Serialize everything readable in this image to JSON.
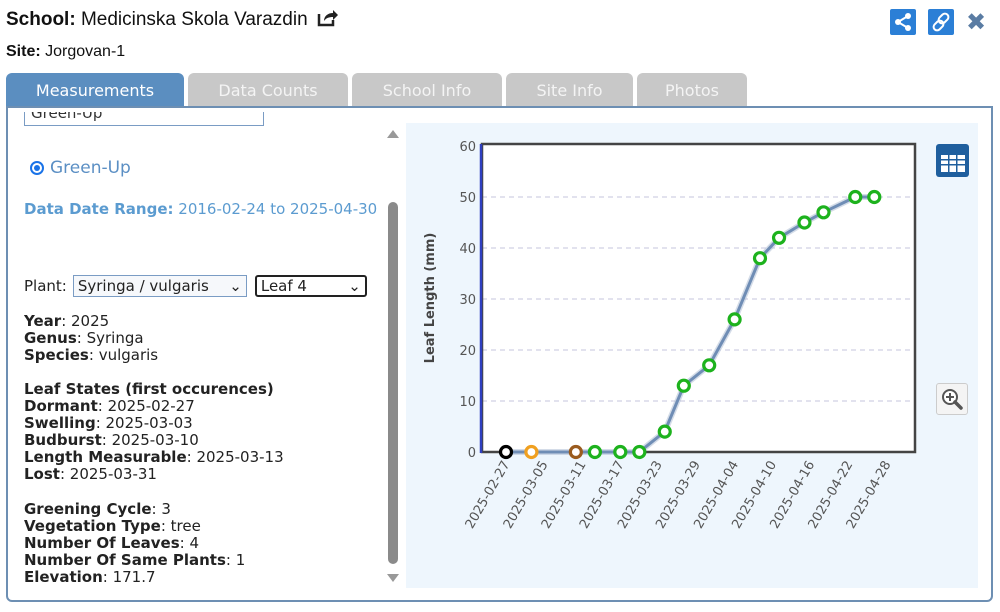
{
  "header": {
    "school_label": "School:",
    "school_name": "Medicinska Skola Varazdin",
    "site_label": "Site:",
    "site_name": "Jorgovan-1"
  },
  "tabs": [
    {
      "label": "Measurements",
      "active": true
    },
    {
      "label": "Data Counts"
    },
    {
      "label": "School Info"
    },
    {
      "label": "Site Info"
    },
    {
      "label": "Photos"
    }
  ],
  "left": {
    "protocol_select": "Green-Up",
    "radio_label": "Green-Up",
    "range_label": "Data Date Range:",
    "range_value": "2016-02-24 to 2025-04-30",
    "plant_label": "Plant:",
    "plant_select": "Syringa / vulgaris",
    "leaf_select": "Leaf 4",
    "info1": [
      {
        "k": "Year",
        "v": "2025"
      },
      {
        "k": "Genus",
        "v": "Syringa"
      },
      {
        "k": "Species",
        "v": "vulgaris"
      }
    ],
    "states_title": "Leaf States (first occurences)",
    "states": [
      {
        "k": "Dormant",
        "v": "2025-02-27"
      },
      {
        "k": "Swelling",
        "v": "2025-03-03"
      },
      {
        "k": "Budburst",
        "v": "2025-03-10"
      },
      {
        "k": "Length Measurable",
        "v": "2025-03-13"
      },
      {
        "k": "Lost",
        "v": "2025-03-31"
      }
    ],
    "info2": [
      {
        "k": "Greening Cycle",
        "v": "3"
      },
      {
        "k": "Vegetation Type",
        "v": "tree"
      },
      {
        "k": "Number Of Leaves",
        "v": "4"
      },
      {
        "k": "Number Of Same Plants",
        "v": "1"
      },
      {
        "k": "Elevation",
        "v": "171.7"
      }
    ]
  },
  "colors": {
    "accent": "#2b7fd6",
    "tab_active": "#5b8ec0",
    "line": "#6f8db5",
    "dormant": "#000000",
    "swelling": "#f0a020",
    "budburst": "#9a5b1e",
    "green": "#1db21d"
  },
  "chart_data": {
    "type": "line",
    "ylabel": "Leaf Length (mm)",
    "ylim": [
      0,
      60
    ],
    "yticks": [
      0,
      10,
      20,
      30,
      40,
      50,
      60
    ],
    "xticks": [
      "2025-02-27",
      "2025-03-05",
      "2025-03-11",
      "2025-03-17",
      "2025-03-23",
      "2025-03-29",
      "2025-04-04",
      "2025-04-10",
      "2025-04-16",
      "2025-04-22",
      "2025-04-28"
    ],
    "grid": "horizontal dashed",
    "points": [
      {
        "date": "2025-02-27",
        "value": 0,
        "state": "dormant"
      },
      {
        "date": "2025-03-03",
        "value": 0,
        "state": "swelling"
      },
      {
        "date": "2025-03-10",
        "value": 0,
        "state": "budburst"
      },
      {
        "date": "2025-03-13",
        "value": 0,
        "state": "green"
      },
      {
        "date": "2025-03-17",
        "value": 0,
        "state": "green"
      },
      {
        "date": "2025-03-20",
        "value": 0,
        "state": "green"
      },
      {
        "date": "2025-03-24",
        "value": 4,
        "state": "green"
      },
      {
        "date": "2025-03-27",
        "value": 13,
        "state": "green"
      },
      {
        "date": "2025-03-31",
        "value": 17,
        "state": "green"
      },
      {
        "date": "2025-04-04",
        "value": 26,
        "state": "green"
      },
      {
        "date": "2025-04-08",
        "value": 38,
        "state": "green"
      },
      {
        "date": "2025-04-11",
        "value": 42,
        "state": "green"
      },
      {
        "date": "2025-04-15",
        "value": 45,
        "state": "green"
      },
      {
        "date": "2025-04-18",
        "value": 47,
        "state": "green"
      },
      {
        "date": "2025-04-23",
        "value": 50,
        "state": "green"
      },
      {
        "date": "2025-04-26",
        "value": 50,
        "state": "green"
      }
    ]
  }
}
